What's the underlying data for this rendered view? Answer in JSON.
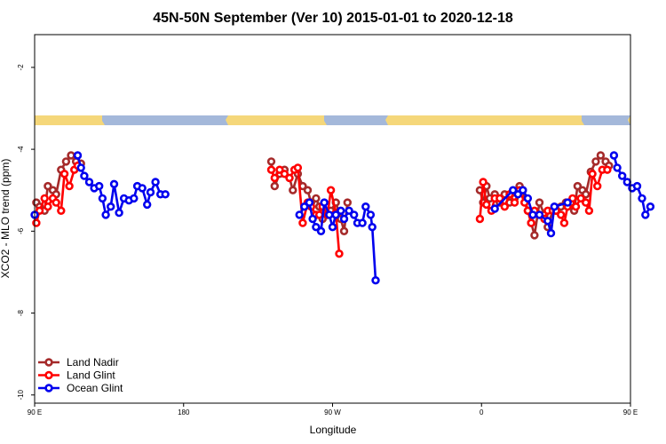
{
  "chart_data": {
    "type": "line",
    "title": "45N-50N September (Ver 10)   2015-01-01 to 2020-12-18",
    "xlabel": "Longitude",
    "ylabel": "XCO2 - MLO trend (ppm)",
    "xlim": [
      90,
      450
    ],
    "ylim": [
      -10.2,
      -1.2
    ],
    "xticks": [
      {
        "value": 90,
        "label": "90 E"
      },
      {
        "value": 180,
        "label": "180"
      },
      {
        "value": 270,
        "label": "90 W"
      },
      {
        "value": 360,
        "label": "0"
      },
      {
        "value": 450,
        "label": "90 E"
      },
      {
        "value": 540,
        "label": "180"
      }
    ],
    "yticks": [
      -2,
      -4,
      -6,
      -8,
      -10
    ],
    "legend_position": "bottom-left",
    "colors": {
      "land_nadir": "#a52a2a",
      "land_glint": "#ff0000",
      "ocean_glint": "#0000ee",
      "map_land": "#f5d77a",
      "map_ocean": "#a4b8da"
    },
    "series": [
      {
        "name": "Land Nadir",
        "color": "#a52a2a",
        "points": [
          [
            91,
            -5.3
          ],
          [
            93,
            -5.4
          ],
          [
            96,
            -5.5
          ],
          [
            98,
            -4.9
          ],
          [
            101,
            -5.0
          ],
          [
            103,
            -5.1
          ],
          [
            106,
            -4.5
          ],
          [
            109,
            -4.3
          ],
          [
            112,
            -4.15
          ],
          [
            115,
            -4.3
          ],
          [
            118,
            -4.35
          ],
          [
            233,
            -4.3
          ],
          [
            235,
            -4.9
          ],
          [
            238,
            -4.6
          ],
          [
            241,
            -4.5
          ],
          [
            244,
            -4.7
          ],
          [
            246,
            -5.0
          ],
          [
            249,
            -4.6
          ],
          [
            252,
            -4.9
          ],
          [
            255,
            -5.0
          ],
          [
            257,
            -5.3
          ],
          [
            260,
            -5.2
          ],
          [
            262,
            -5.4
          ],
          [
            264,
            -5.7
          ],
          [
            267,
            -5.6
          ],
          [
            269,
            -5.5
          ],
          [
            272,
            -5.3
          ],
          [
            275,
            -5.7
          ],
          [
            277,
            -6.0
          ],
          [
            279,
            -5.3
          ],
          [
            359,
            -5.0
          ],
          [
            361,
            -5.3
          ],
          [
            363,
            -4.9
          ],
          [
            365,
            -5.2
          ],
          [
            368,
            -5.1
          ],
          [
            371,
            -5.3
          ],
          [
            374,
            -5.1
          ],
          [
            377,
            -5.3
          ],
          [
            380,
            -5.2
          ],
          [
            383,
            -4.9
          ],
          [
            385,
            -5.0
          ],
          [
            388,
            -5.5
          ],
          [
            390,
            -5.8
          ],
          [
            392,
            -6.1
          ],
          [
            395,
            -5.3
          ],
          [
            398,
            -5.6
          ],
          [
            400,
            -5.9
          ],
          [
            403,
            -5.5
          ],
          [
            405,
            -5.5
          ],
          [
            408,
            -5.4
          ],
          [
            411,
            -5.3
          ],
          [
            414,
            -5.3
          ],
          [
            416,
            -5.5
          ],
          [
            418,
            -4.9
          ],
          [
            421,
            -5.0
          ],
          [
            423,
            -5.1
          ],
          [
            426,
            -4.55
          ],
          [
            429,
            -4.3
          ],
          [
            432,
            -4.15
          ],
          [
            435,
            -4.3
          ],
          [
            437,
            -4.4
          ]
        ]
      },
      {
        "name": "Land Glint",
        "color": "#ff0000",
        "points": [
          [
            91,
            -5.8
          ],
          [
            93,
            -5.5
          ],
          [
            96,
            -5.2
          ],
          [
            98,
            -5.4
          ],
          [
            101,
            -5.2
          ],
          [
            103,
            -5.3
          ],
          [
            106,
            -5.5
          ],
          [
            108,
            -4.6
          ],
          [
            111,
            -4.9
          ],
          [
            114,
            -4.5
          ],
          [
            116,
            -4.4
          ],
          [
            233,
            -4.5
          ],
          [
            235,
            -4.7
          ],
          [
            238,
            -4.5
          ],
          [
            241,
            -4.6
          ],
          [
            244,
            -4.7
          ],
          [
            247,
            -4.5
          ],
          [
            249,
            -4.45
          ],
          [
            252,
            -5.8
          ],
          [
            255,
            -5.3
          ],
          [
            257,
            -5.4
          ],
          [
            260,
            -5.6
          ],
          [
            262,
            -5.6
          ],
          [
            264,
            -5.4
          ],
          [
            267,
            -5.6
          ],
          [
            269,
            -5.0
          ],
          [
            272,
            -5.55
          ],
          [
            274,
            -6.55
          ],
          [
            359,
            -5.7
          ],
          [
            361,
            -4.8
          ],
          [
            363,
            -5.35
          ],
          [
            366,
            -5.5
          ],
          [
            368,
            -5.2
          ],
          [
            371,
            -5.2
          ],
          [
            374,
            -5.4
          ],
          [
            377,
            -5.1
          ],
          [
            380,
            -5.3
          ],
          [
            383,
            -5.0
          ],
          [
            386,
            -5.3
          ],
          [
            388,
            -5.5
          ],
          [
            390,
            -5.8
          ],
          [
            392,
            -5.5
          ],
          [
            395,
            -5.6
          ],
          [
            398,
            -5.7
          ],
          [
            400,
            -5.5
          ],
          [
            403,
            -5.5
          ],
          [
            405,
            -5.5
          ],
          [
            408,
            -5.6
          ],
          [
            410,
            -5.8
          ],
          [
            412,
            -5.4
          ],
          [
            415,
            -5.2
          ],
          [
            417,
            -5.4
          ],
          [
            420,
            -5.2
          ],
          [
            423,
            -5.3
          ],
          [
            425,
            -5.5
          ],
          [
            427,
            -4.6
          ],
          [
            430,
            -4.9
          ],
          [
            433,
            -4.5
          ],
          [
            436,
            -4.5
          ]
        ]
      },
      {
        "name": "Ocean Glint",
        "color": "#0000ee",
        "points": [
          [
            90,
            -5.6
          ],
          [
            116,
            -4.15
          ],
          [
            118,
            -4.45
          ],
          [
            120,
            -4.65
          ],
          [
            123,
            -4.8
          ],
          [
            126,
            -4.95
          ],
          [
            129,
            -4.9
          ],
          [
            131,
            -5.2
          ],
          [
            133,
            -5.6
          ],
          [
            136,
            -5.4
          ],
          [
            138,
            -4.85
          ],
          [
            141,
            -5.55
          ],
          [
            144,
            -5.2
          ],
          [
            147,
            -5.25
          ],
          [
            150,
            -5.2
          ],
          [
            152,
            -4.9
          ],
          [
            155,
            -4.95
          ],
          [
            158,
            -5.35
          ],
          [
            160,
            -5.05
          ],
          [
            163,
            -4.8
          ],
          [
            166,
            -5.1
          ],
          [
            169,
            -5.1
          ],
          [
            250,
            -5.6
          ],
          [
            253,
            -5.4
          ],
          [
            256,
            -5.3
          ],
          [
            258,
            -5.7
          ],
          [
            260,
            -5.9
          ],
          [
            263,
            -6.0
          ],
          [
            265,
            -5.3
          ],
          [
            268,
            -5.6
          ],
          [
            270,
            -5.9
          ],
          [
            272,
            -5.6
          ],
          [
            275,
            -5.5
          ],
          [
            277,
            -5.7
          ],
          [
            280,
            -5.5
          ],
          [
            283,
            -5.6
          ],
          [
            285,
            -5.8
          ],
          [
            288,
            -5.8
          ],
          [
            290,
            -5.4
          ],
          [
            293,
            -5.6
          ],
          [
            294,
            -5.9
          ],
          [
            296,
            -7.2
          ],
          [
            368,
            -5.45
          ],
          [
            379,
            -5.0
          ],
          [
            382,
            -5.1
          ],
          [
            385,
            -5.0
          ],
          [
            388,
            -5.2
          ],
          [
            391,
            -5.6
          ],
          [
            395,
            -5.6
          ],
          [
            400,
            -5.75
          ],
          [
            402,
            -6.05
          ],
          [
            404,
            -5.4
          ],
          [
            412,
            -5.3
          ],
          [
            440,
            -4.15
          ],
          [
            442,
            -4.45
          ],
          [
            445,
            -4.65
          ],
          [
            448,
            -4.8
          ],
          [
            451,
            -4.95
          ],
          [
            454,
            -4.9
          ],
          [
            457,
            -5.2
          ],
          [
            459,
            -5.6
          ],
          [
            462,
            -5.4
          ]
        ]
      }
    ]
  }
}
